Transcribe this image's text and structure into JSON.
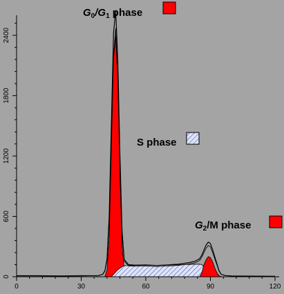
{
  "chart_data": {
    "type": "area",
    "title": "",
    "xlabel": "",
    "ylabel": "",
    "xlim": [
      0,
      120
    ],
    "ylim": [
      0,
      2600
    ],
    "x_ticks": [
      0,
      30,
      60,
      90,
      120
    ],
    "y_ticks": [
      0,
      600,
      1200,
      1800,
      2400
    ],
    "grid": false,
    "colors": {
      "background": "#a4a4a4",
      "g_phase_fill": "#ff0000",
      "s_phase_fill": "#dde4f5",
      "outline": "#000000"
    },
    "total_curve": {
      "x": [
        0,
        10,
        20,
        30,
        38,
        40,
        41,
        42,
        43,
        44,
        45,
        46,
        47,
        48,
        49,
        50,
        52,
        55,
        60,
        65,
        70,
        75,
        80,
        83,
        85,
        86,
        87,
        88,
        89,
        90,
        91,
        92,
        93,
        94,
        95,
        97,
        100,
        110,
        120
      ],
      "y": [
        10,
        10,
        8,
        10,
        12,
        25,
        60,
        180,
        600,
        1500,
        2420,
        2650,
        2150,
        1200,
        450,
        170,
        120,
        115,
        118,
        112,
        118,
        125,
        140,
        155,
        180,
        215,
        265,
        315,
        345,
        330,
        270,
        200,
        130,
        60,
        25,
        12,
        8,
        6,
        5
      ]
    },
    "series": [
      {
        "name": "G0/G1 phase",
        "x": [
          41,
          42,
          43,
          44,
          45,
          46,
          47,
          48,
          49,
          50,
          51,
          52
        ],
        "y": [
          0,
          70,
          380,
          1250,
          2200,
          2470,
          1980,
          1000,
          300,
          60,
          10,
          0
        ]
      },
      {
        "name": "S phase",
        "x": [
          44,
          47,
          49,
          50,
          55,
          60,
          65,
          70,
          75,
          80,
          85,
          87,
          89,
          91,
          93
        ],
        "y": [
          0,
          70,
          100,
          110,
          112,
          115,
          112,
          115,
          118,
          122,
          125,
          110,
          70,
          25,
          0
        ]
      },
      {
        "name": "G2/M phase",
        "x": [
          85,
          86,
          87,
          88,
          89,
          90,
          91,
          92,
          93,
          94,
          95
        ],
        "y": [
          0,
          40,
          120,
          170,
          200,
          190,
          150,
          90,
          40,
          10,
          0
        ]
      }
    ],
    "phase_labels": {
      "g0g1": {
        "g1": "G",
        "s1": "0",
        "mid": "/G",
        "s2": "1",
        "tail": " phase"
      },
      "s": {
        "text": "S phase"
      },
      "g2m": {
        "g1": "G",
        "s1": "2",
        "tail": "/M phase"
      }
    }
  }
}
